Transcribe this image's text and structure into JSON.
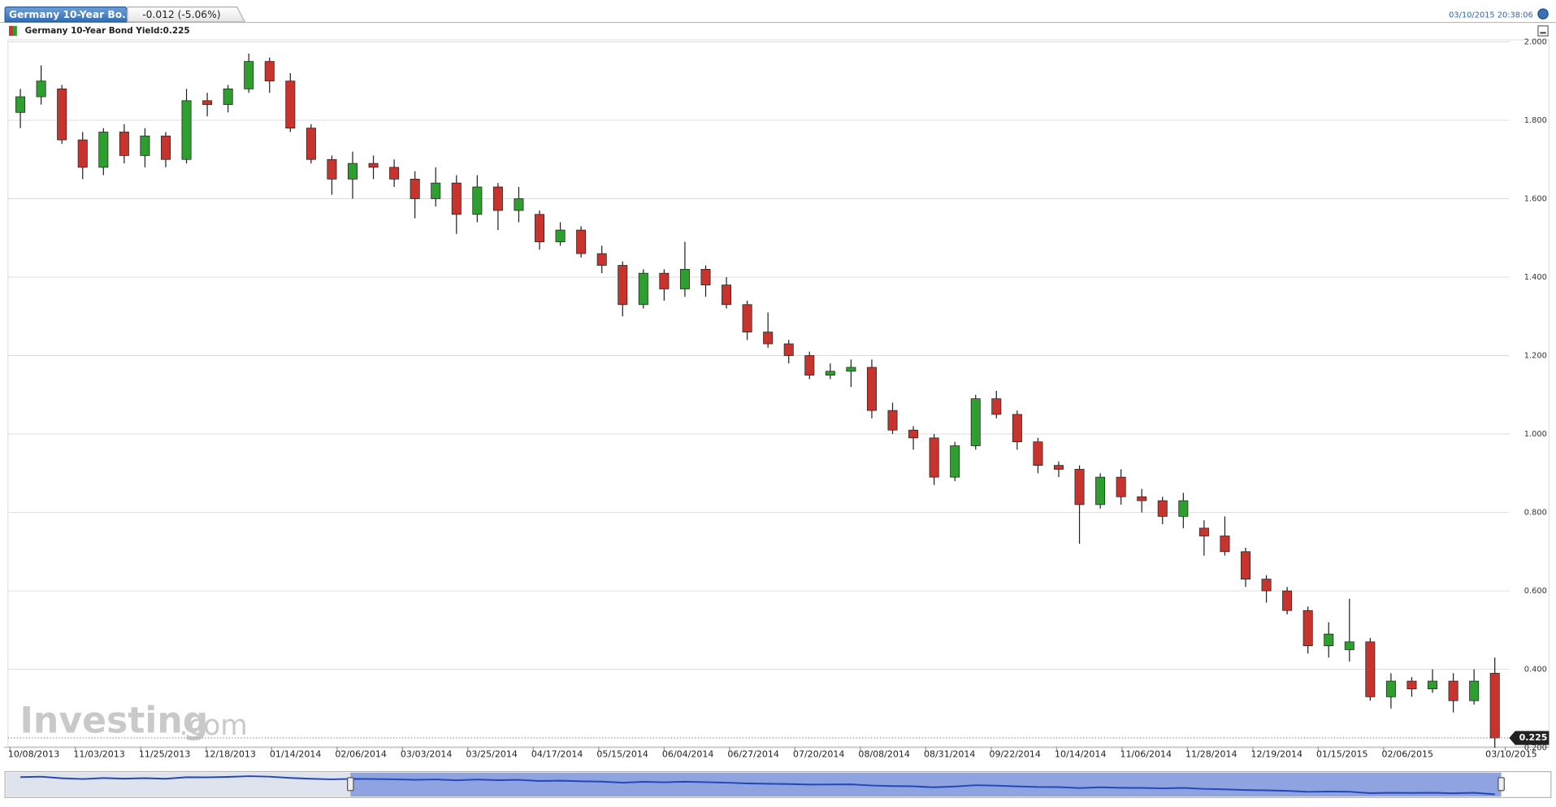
{
  "chart_data": {
    "type": "candlestick",
    "tab_title": "Germany 10-Year Bo...",
    "change": "-0.012 (-5.06%)",
    "timestamp": "03/10/2015 20:38:06",
    "legend": "Germany 10-Year Bond Yield:0.225",
    "last_value": 0.225,
    "watermark": [
      "Investing",
      ".com"
    ],
    "up_color": "#2e9e2e",
    "down_color": "#c8332e",
    "grid": true,
    "xlim": [
      0,
      72
    ],
    "xticks": [
      {
        "value": 0,
        "label": "10/08/2013"
      },
      {
        "value": 3.15,
        "label": "11/03/2013"
      },
      {
        "value": 6.3,
        "label": "11/25/2013"
      },
      {
        "value": 9.45,
        "label": "12/18/2013"
      },
      {
        "value": 12.6,
        "label": "01/14/2014"
      },
      {
        "value": 15.75,
        "label": "02/06/2014"
      },
      {
        "value": 18.9,
        "label": "03/03/2014"
      },
      {
        "value": 22.05,
        "label": "03/25/2014"
      },
      {
        "value": 25.2,
        "label": "04/17/2014"
      },
      {
        "value": 28.35,
        "label": "05/15/2014"
      },
      {
        "value": 31.5,
        "label": "06/04/2014"
      },
      {
        "value": 34.65,
        "label": "06/27/2014"
      },
      {
        "value": 37.8,
        "label": "07/20/2014"
      },
      {
        "value": 40.95,
        "label": "08/08/2014"
      },
      {
        "value": 44.1,
        "label": "08/31/2014"
      },
      {
        "value": 47.25,
        "label": "09/22/2014"
      },
      {
        "value": 50.4,
        "label": "10/14/2014"
      },
      {
        "value": 53.55,
        "label": "11/06/2014"
      },
      {
        "value": 56.7,
        "label": "11/28/2014"
      },
      {
        "value": 59.85,
        "label": "12/19/2014"
      },
      {
        "value": 63,
        "label": "01/15/2015"
      },
      {
        "value": 66.15,
        "label": "02/06/2015"
      },
      {
        "value": 72,
        "label": "03/10/2015"
      }
    ],
    "ylim": [
      0.2,
      2.0
    ],
    "yticks": [
      {
        "value": 0.2,
        "label": "0.200"
      },
      {
        "value": 0.4,
        "label": "0.400"
      },
      {
        "value": 0.6,
        "label": "0.600"
      },
      {
        "value": 0.8,
        "label": "0.800"
      },
      {
        "value": 1.0,
        "label": "1.000"
      },
      {
        "value": 1.2,
        "label": "1.200"
      },
      {
        "value": 1.4,
        "label": "1.400"
      },
      {
        "value": 1.6,
        "label": "1.600"
      },
      {
        "value": 1.8,
        "label": "1.800"
      },
      {
        "value": 2.0,
        "label": "2.000"
      }
    ],
    "open": [
      1.82,
      1.86,
      1.88,
      1.75,
      1.68,
      1.77,
      1.71,
      1.76,
      1.7,
      1.85,
      1.84,
      1.88,
      1.95,
      1.9,
      1.78,
      1.7,
      1.65,
      1.69,
      1.68,
      1.65,
      1.6,
      1.64,
      1.56,
      1.63,
      1.57,
      1.56,
      1.49,
      1.52,
      1.46,
      1.43,
      1.33,
      1.41,
      1.37,
      1.42,
      1.38,
      1.33,
      1.26,
      1.23,
      1.2,
      1.15,
      1.16,
      1.17,
      1.06,
      1.01,
      0.99,
      0.89,
      0.97,
      1.09,
      1.05,
      0.98,
      0.92,
      0.91,
      0.82,
      0.89,
      0.84,
      0.83,
      0.79,
      0.76,
      0.74,
      0.7,
      0.63,
      0.6,
      0.55,
      0.46,
      0.45,
      0.47,
      0.33,
      0.37,
      0.35,
      0.37,
      0.32,
      0.39
    ],
    "high": [
      1.88,
      1.94,
      1.89,
      1.77,
      1.78,
      1.79,
      1.78,
      1.77,
      1.88,
      1.87,
      1.89,
      1.97,
      1.96,
      1.92,
      1.79,
      1.71,
      1.72,
      1.71,
      1.7,
      1.67,
      1.68,
      1.66,
      1.66,
      1.64,
      1.63,
      1.57,
      1.54,
      1.53,
      1.48,
      1.44,
      1.42,
      1.42,
      1.49,
      1.43,
      1.4,
      1.34,
      1.31,
      1.24,
      1.21,
      1.18,
      1.19,
      1.19,
      1.08,
      1.02,
      1.0,
      0.98,
      1.1,
      1.11,
      1.06,
      0.99,
      0.93,
      0.92,
      0.9,
      0.91,
      0.86,
      0.84,
      0.85,
      0.78,
      0.79,
      0.71,
      0.64,
      0.61,
      0.56,
      0.52,
      0.58,
      0.48,
      0.39,
      0.38,
      0.4,
      0.39,
      0.4,
      0.43
    ],
    "low": [
      1.78,
      1.84,
      1.74,
      1.65,
      1.66,
      1.69,
      1.68,
      1.68,
      1.69,
      1.81,
      1.82,
      1.87,
      1.87,
      1.77,
      1.69,
      1.61,
      1.6,
      1.65,
      1.63,
      1.55,
      1.58,
      1.51,
      1.54,
      1.52,
      1.54,
      1.47,
      1.48,
      1.45,
      1.41,
      1.3,
      1.32,
      1.34,
      1.35,
      1.35,
      1.32,
      1.24,
      1.22,
      1.18,
      1.14,
      1.14,
      1.12,
      1.04,
      1.0,
      0.96,
      0.87,
      0.88,
      0.96,
      1.04,
      0.96,
      0.9,
      0.89,
      0.72,
      0.81,
      0.82,
      0.8,
      0.77,
      0.76,
      0.69,
      0.69,
      0.61,
      0.57,
      0.54,
      0.44,
      0.43,
      0.42,
      0.32,
      0.3,
      0.33,
      0.34,
      0.29,
      0.31,
      0.2
    ],
    "close": [
      1.86,
      1.9,
      1.75,
      1.68,
      1.77,
      1.71,
      1.76,
      1.7,
      1.85,
      1.84,
      1.88,
      1.95,
      1.9,
      1.78,
      1.7,
      1.65,
      1.69,
      1.68,
      1.65,
      1.6,
      1.64,
      1.56,
      1.63,
      1.57,
      1.6,
      1.49,
      1.52,
      1.46,
      1.43,
      1.33,
      1.41,
      1.37,
      1.42,
      1.38,
      1.33,
      1.26,
      1.23,
      1.2,
      1.15,
      1.16,
      1.17,
      1.06,
      1.01,
      0.99,
      0.89,
      0.97,
      1.09,
      1.05,
      0.98,
      0.92,
      0.91,
      0.82,
      0.89,
      0.84,
      0.83,
      0.79,
      0.83,
      0.74,
      0.7,
      0.63,
      0.6,
      0.55,
      0.46,
      0.49,
      0.47,
      0.33,
      0.37,
      0.35,
      0.37,
      0.32,
      0.37,
      0.225
    ]
  }
}
